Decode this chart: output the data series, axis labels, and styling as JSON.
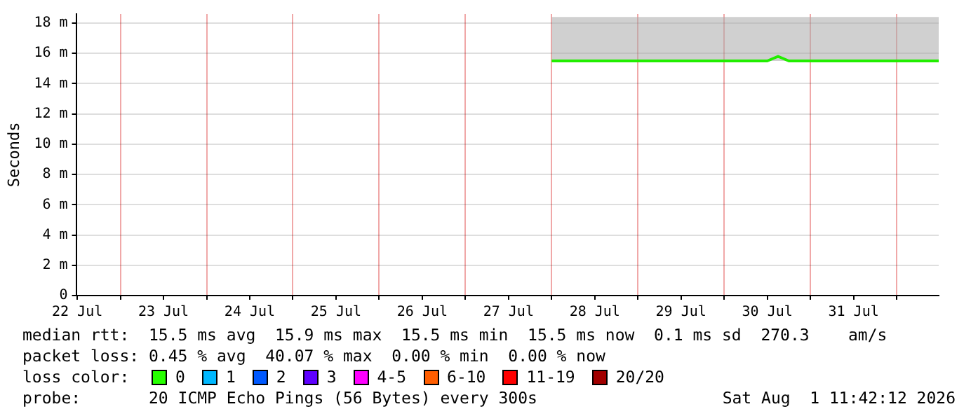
{
  "chart_data": {
    "type": "line",
    "ylabel": "Seconds",
    "x": [
      "2026-07-28T00:00",
      "2026-07-28T03:00",
      "2026-07-28T06:00",
      "2026-07-28T09:00",
      "2026-07-28T12:00",
      "2026-07-28T15:00",
      "2026-07-28T18:00",
      "2026-07-28T21:00",
      "2026-07-29T00:00",
      "2026-07-29T03:00",
      "2026-07-29T06:00",
      "2026-07-29T09:00",
      "2026-07-29T12:00",
      "2026-07-29T15:00",
      "2026-07-29T18:00",
      "2026-07-29T21:00",
      "2026-07-30T00:00",
      "2026-07-30T03:00",
      "2026-07-30T06:00",
      "2026-07-30T09:00",
      "2026-07-30T12:00",
      "2026-07-30T15:00",
      "2026-07-30T18:00",
      "2026-07-30T21:00",
      "2026-07-31T00:00",
      "2026-07-31T03:00",
      "2026-07-31T06:00",
      "2026-07-31T09:00",
      "2026-07-31T12:00",
      "2026-07-31T15:00",
      "2026-07-31T18:00",
      "2026-07-31T21:00",
      "2026-08-01T00:00",
      "2026-08-01T03:00",
      "2026-08-01T06:00",
      "2026-08-01T09:00",
      "2026-08-01T11:42"
    ],
    "series": [
      {
        "color": "#22ee00",
        "values": [
          15.5,
          15.5,
          15.5,
          15.5,
          15.5,
          15.5,
          15.5,
          15.5,
          15.5,
          15.5,
          15.5,
          15.5,
          15.5,
          15.5,
          15.5,
          15.5,
          15.5,
          15.5,
          15.5,
          15.5,
          15.5,
          15.8,
          15.5,
          15.5,
          15.5,
          15.5,
          15.5,
          15.5,
          15.5,
          15.5,
          15.5,
          15.5,
          15.5,
          15.5,
          15.5,
          15.5,
          15.5
        ],
        "lower": [
          15.5,
          15.5,
          15.5,
          15.5,
          15.5,
          15.5,
          15.5,
          15.5,
          15.5,
          15.5,
          15.5,
          15.5,
          15.5,
          15.5,
          15.5,
          15.5,
          15.5,
          15.5,
          15.5,
          15.5,
          15.5,
          15.5,
          15.5,
          15.5,
          15.5,
          15.5,
          15.5,
          15.5,
          15.5,
          15.5,
          15.5,
          15.5,
          15.5,
          15.5,
          15.5,
          15.5,
          15.5
        ],
        "upper": [
          18.4,
          18.4,
          18.4,
          18.4,
          18.4,
          18.4,
          18.4,
          18.4,
          18.4,
          18.4,
          18.4,
          18.4,
          18.4,
          18.4,
          18.4,
          18.4,
          18.4,
          18.4,
          18.4,
          18.4,
          18.4,
          18.4,
          18.4,
          18.4,
          18.4,
          18.4,
          18.4,
          18.4,
          18.4,
          18.4,
          18.4,
          18.4,
          18.4,
          18.4,
          18.4,
          18.4,
          18.4
        ]
      }
    ],
    "xlim": [
      "2026-07-22T11:42",
      "2026-08-01T11:42"
    ],
    "xticks": [
      {
        "value": "2026-07-22T12:00",
        "label": "22 Jul"
      },
      {
        "value": "2026-07-23T00:00",
        "label": null
      },
      {
        "value": "2026-07-23T12:00",
        "label": "23 Jul"
      },
      {
        "value": "2026-07-24T00:00",
        "label": null
      },
      {
        "value": "2026-07-24T12:00",
        "label": "24 Jul"
      },
      {
        "value": "2026-07-25T00:00",
        "label": null
      },
      {
        "value": "2026-07-25T12:00",
        "label": "25 Jul"
      },
      {
        "value": "2026-07-26T00:00",
        "label": null
      },
      {
        "value": "2026-07-26T12:00",
        "label": "26 Jul"
      },
      {
        "value": "2026-07-27T00:00",
        "label": null
      },
      {
        "value": "2026-07-27T12:00",
        "label": "27 Jul"
      },
      {
        "value": "2026-07-28T00:00",
        "label": null
      },
      {
        "value": "2026-07-28T12:00",
        "label": "28 Jul"
      },
      {
        "value": "2026-07-29T00:00",
        "label": null
      },
      {
        "value": "2026-07-29T12:00",
        "label": "29 Jul"
      },
      {
        "value": "2026-07-30T00:00",
        "label": null
      },
      {
        "value": "2026-07-30T12:00",
        "label": "30 Jul"
      },
      {
        "value": "2026-07-31T00:00",
        "label": null
      },
      {
        "value": "2026-07-31T12:00",
        "label": "31 Jul"
      },
      {
        "value": "2026-08-01T00:00",
        "label": null
      }
    ],
    "ylim": [
      0,
      18.6
    ],
    "yticks": [
      0,
      {
        "value": 2,
        "label": "2 m"
      },
      {
        "value": 4,
        "label": "4 m"
      },
      {
        "value": 6,
        "label": "6 m"
      },
      {
        "value": 8,
        "label": "8 m"
      },
      {
        "value": 10,
        "label": "10 m"
      },
      {
        "value": 12,
        "label": "12 m"
      },
      {
        "value": 14,
        "label": "14 m"
      },
      {
        "value": 16,
        "label": "16 m"
      },
      {
        "value": 18,
        "label": "18 m"
      }
    ],
    "grid": true,
    "legend": false,
    "marker": "none",
    "line_style": "solid",
    "annotations": [
      "median rtt:  15.5 ms avg  15.9 ms max  15.5 ms min  15.5 ms now  0.1 ms sd  270.3    am/s",
      "packet loss: 0.45 % avg  40.07 % max  0.00 % min  0.00 % now",
      "loss color:",
      "0",
      "1",
      "2",
      "3",
      "4-5",
      "6-10",
      "11-19",
      "20/20",
      "probe:       20 ICMP Echo Pings (56 Bytes) every 300s",
      "Sat Aug  1 11:42:12 2026"
    ]
  }
}
